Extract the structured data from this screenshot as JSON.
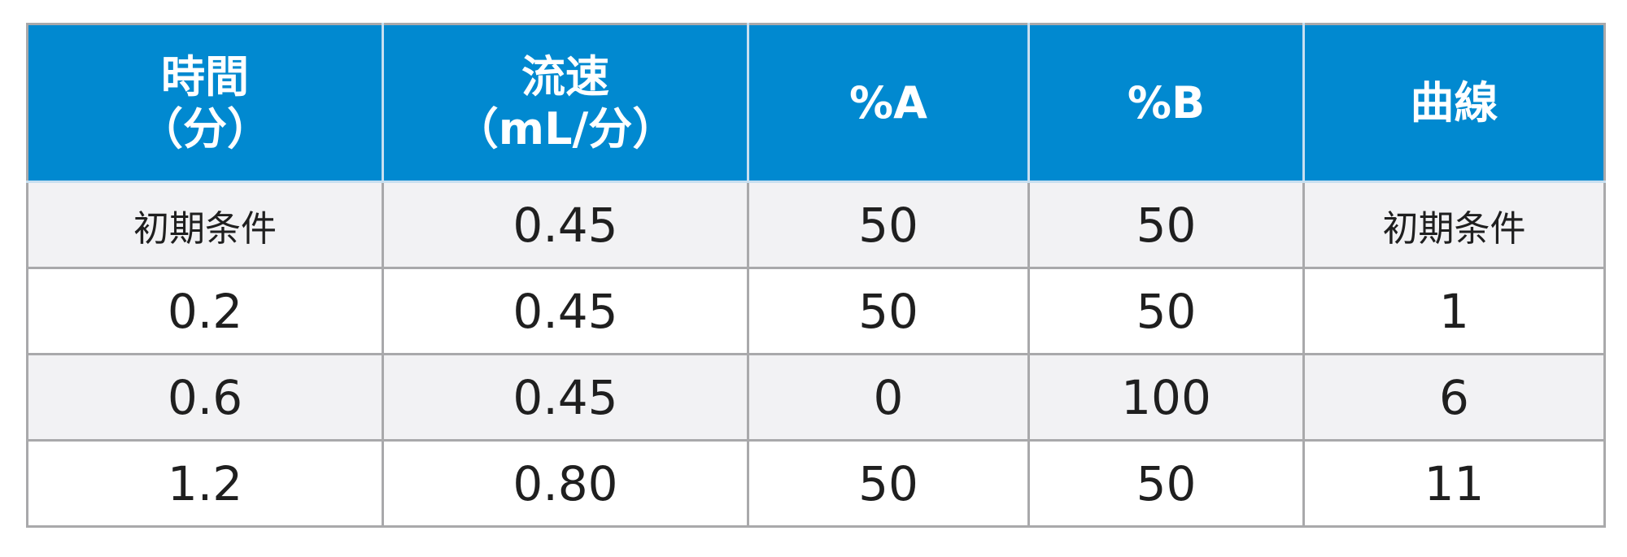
{
  "table": {
    "header": [
      [
        "時間",
        "（分）"
      ],
      [
        "流速",
        "（mL/分）"
      ],
      [
        "%A"
      ],
      [
        "%B"
      ],
      [
        "曲線"
      ]
    ],
    "rows": [
      [
        "初期条件",
        "0.45",
        "50",
        "50",
        "初期条件"
      ],
      [
        "0.2",
        "0.45",
        "50",
        "50",
        "1"
      ],
      [
        "0.6",
        "0.45",
        "0",
        "100",
        "6"
      ],
      [
        "1.2",
        "0.80",
        "50",
        "50",
        "11"
      ]
    ]
  }
}
